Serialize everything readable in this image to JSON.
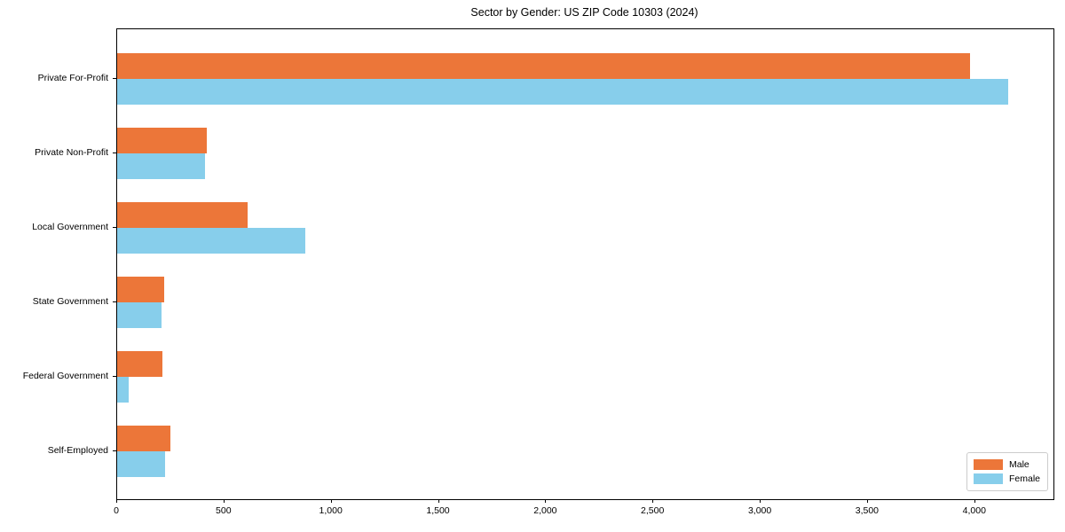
{
  "chart_data": {
    "type": "bar",
    "orientation": "horizontal",
    "title": "Sector by Gender: US ZIP Code 10303 (2024)",
    "categories": [
      "Private For-Profit",
      "Private Non-Profit",
      "Local Government",
      "State Government",
      "Federal Government",
      "Self-Employed"
    ],
    "series": [
      {
        "name": "Male",
        "color": "#EC7639",
        "values": [
          3975,
          418,
          610,
          218,
          210,
          250
        ]
      },
      {
        "name": "Female",
        "color": "#87CEEB",
        "values": [
          4155,
          408,
          875,
          205,
          55,
          222
        ]
      }
    ],
    "xlim": [
      0,
      4365
    ],
    "xticks": [
      0,
      500,
      1000,
      1500,
      2000,
      2500,
      3000,
      3500,
      4000
    ],
    "xtick_labels": [
      "0",
      "500",
      "1,000",
      "1,500",
      "2,000",
      "2,500",
      "3,000",
      "3,500",
      "4,000"
    ],
    "xlabel": "",
    "ylabel": "",
    "grid": false,
    "legend": {
      "position": "lower right",
      "entries": [
        "Male",
        "Female"
      ]
    }
  }
}
